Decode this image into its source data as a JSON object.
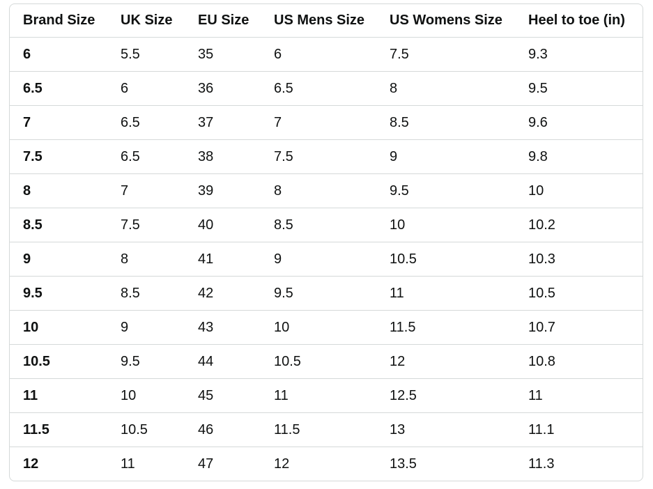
{
  "table": {
    "header": [
      "Brand Size",
      "UK Size",
      "EU Size",
      "US Mens Size",
      "US Womens Size",
      "Heel to toe (in)"
    ],
    "rows": [
      [
        "6",
        "5.5",
        "35",
        "6",
        "7.5",
        "9.3"
      ],
      [
        "6.5",
        "6",
        "36",
        "6.5",
        "8",
        "9.5"
      ],
      [
        "7",
        "6.5",
        "37",
        "7",
        "8.5",
        "9.6"
      ],
      [
        "7.5",
        "6.5",
        "38",
        "7.5",
        "9",
        "9.8"
      ],
      [
        "8",
        "7",
        "39",
        "8",
        "9.5",
        "10"
      ],
      [
        "8.5",
        "7.5",
        "40",
        "8.5",
        "10",
        "10.2"
      ],
      [
        "9",
        "8",
        "41",
        "9",
        "10.5",
        "10.3"
      ],
      [
        "9.5",
        "8.5",
        "42",
        "9.5",
        "11",
        "10.5"
      ],
      [
        "10",
        "9",
        "43",
        "10",
        "11.5",
        "10.7"
      ],
      [
        "10.5",
        "9.5",
        "44",
        "10.5",
        "12",
        "10.8"
      ],
      [
        "11",
        "10",
        "45",
        "11",
        "12.5",
        "11"
      ],
      [
        "11.5",
        "10.5",
        "46",
        "11.5",
        "13",
        "11.1"
      ],
      [
        "12",
        "11",
        "47",
        "12",
        "13.5",
        "11.3"
      ]
    ]
  }
}
